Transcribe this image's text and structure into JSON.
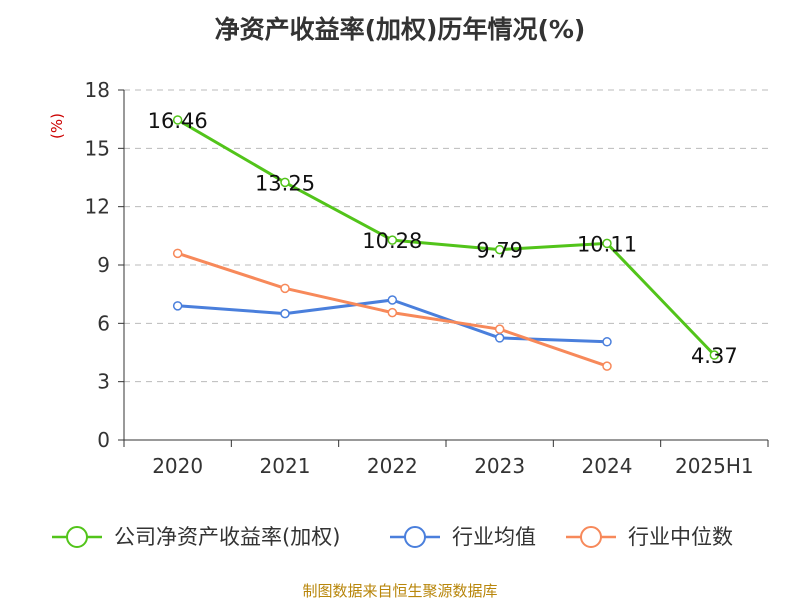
{
  "source": "制图数据来自恒生聚源数据库",
  "chart_data": {
    "type": "line",
    "title": "净资产收益率(加权)历年情况(%)",
    "unit_label": "(%)",
    "categories": [
      "2020",
      "2021",
      "2022",
      "2023",
      "2024",
      "2025H1"
    ],
    "ylim": [
      0,
      18
    ],
    "yticks": [
      0,
      3,
      6,
      9,
      12,
      15,
      18
    ],
    "grid": true,
    "legend_position": "bottom",
    "series": [
      {
        "name": "公司净资产收益率(加权)",
        "color": "#52c41a",
        "values": [
          16.46,
          13.25,
          10.28,
          9.79,
          10.11,
          4.37
        ],
        "labels": [
          "16.46",
          "13.25",
          "10.28",
          "9.79",
          "10.11",
          "4.37"
        ]
      },
      {
        "name": "行业均值",
        "color": "#4a7fdc",
        "values": [
          6.9,
          6.5,
          7.2,
          5.25,
          5.05,
          null
        ],
        "labels": null
      },
      {
        "name": "行业中位数",
        "color": "#f7895a",
        "values": [
          9.6,
          7.8,
          6.55,
          5.7,
          3.8,
          null
        ],
        "labels": null
      }
    ]
  }
}
